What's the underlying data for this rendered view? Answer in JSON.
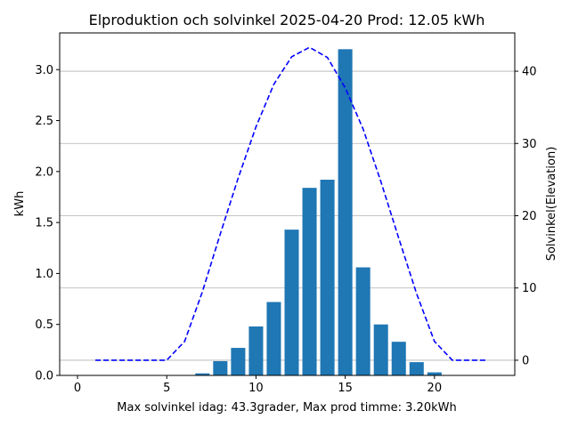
{
  "chart_data": {
    "type": "bar",
    "title": "Elproduktion och solvinkel 2025-04-20 Prod: 12.05 kWh",
    "xlabel": "Max solvinkel idag: 43.3grader, Max prod timme: 3.20kWh",
    "ylabel": "kWh",
    "y2label": "Solvinkel(Elevation)",
    "xlim": [
      -1,
      24.5
    ],
    "ylim": [
      0,
      3.36
    ],
    "y2lim": [
      -2.1,
      45.3
    ],
    "xticks": [
      0,
      5,
      10,
      15,
      20
    ],
    "yticks": [
      0.0,
      0.5,
      1.0,
      1.5,
      2.0,
      2.5,
      3.0
    ],
    "y2ticks": [
      0,
      10,
      20,
      30,
      40
    ],
    "grid": "right-axis-horizontal",
    "bar_color": "#1f77b4",
    "line_color": "#0000ff",
    "series": [
      {
        "type": "bar",
        "axis": "left",
        "x": [
          7,
          8,
          9,
          10,
          11,
          12,
          13,
          14,
          15,
          16,
          17,
          18,
          19,
          20
        ],
        "values": [
          0.02,
          0.14,
          0.27,
          0.48,
          0.72,
          1.43,
          1.84,
          1.92,
          3.2,
          1.06,
          0.5,
          0.33,
          0.13,
          0.03
        ]
      },
      {
        "type": "line",
        "axis": "right",
        "style": "dashed",
        "x": [
          1,
          2,
          3,
          4,
          5,
          6,
          7,
          8,
          9,
          10,
          11,
          12,
          13,
          14,
          15,
          16,
          17,
          18,
          19,
          20,
          21,
          22,
          23
        ],
        "values": [
          0,
          0,
          0,
          0,
          0,
          2.6,
          9.5,
          17.5,
          25.2,
          32.3,
          38.2,
          42.0,
          43.3,
          41.9,
          37.7,
          32.0,
          24.7,
          16.9,
          9.2,
          2.6,
          0,
          0,
          0
        ]
      }
    ]
  }
}
